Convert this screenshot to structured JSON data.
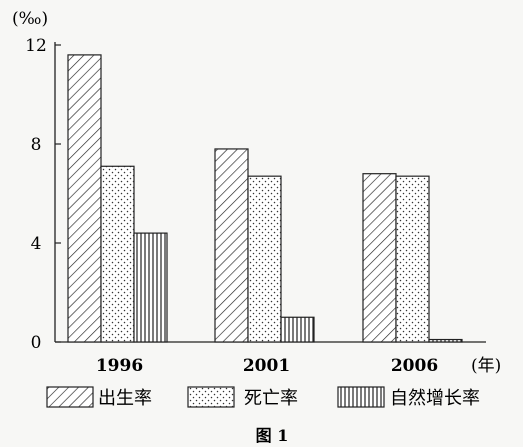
{
  "chart_data": {
    "type": "bar",
    "title": "",
    "caption": "图 1",
    "ylabel": "(‰)",
    "xlabel": "(年)",
    "ylim": [
      0,
      12
    ],
    "yticks": [
      0,
      4,
      8,
      12
    ],
    "grid": false,
    "legend_position": "bottom",
    "categories": [
      "1996",
      "2001",
      "2006"
    ],
    "series": [
      {
        "name": "出生率",
        "values": [
          11.6,
          7.8,
          6.8
        ],
        "pattern": "diagonal-hatch"
      },
      {
        "name": "死亡率",
        "values": [
          7.1,
          6.7,
          6.7
        ],
        "pattern": "dots"
      },
      {
        "name": "自然增长率",
        "values": [
          4.4,
          1.0,
          0.1
        ],
        "pattern": "vertical-lines"
      }
    ]
  }
}
